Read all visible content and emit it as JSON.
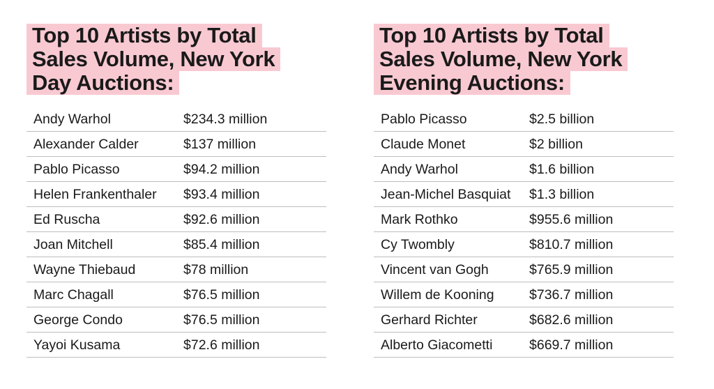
{
  "day_auctions": {
    "title_lines": [
      "Top 10 Artists by Total",
      "Sales Volume, New York",
      "Day Auctions:"
    ],
    "rows": [
      {
        "artist": "Andy Warhol",
        "sales": "$234.3 million"
      },
      {
        "artist": "Alexander Calder",
        "sales": "$137 million"
      },
      {
        "artist": "Pablo Picasso",
        "sales": "$94.2 million"
      },
      {
        "artist": "Helen Frankenthaler",
        "sales": "$93.4 million"
      },
      {
        "artist": "Ed Ruscha",
        "sales": "$92.6 million"
      },
      {
        "artist": "Joan Mitchell",
        "sales": "$85.4 million"
      },
      {
        "artist": "Wayne Thiebaud",
        "sales": "$78 million"
      },
      {
        "artist": "Marc Chagall",
        "sales": "$76.5 million"
      },
      {
        "artist": "George Condo",
        "sales": "$76.5 million"
      },
      {
        "artist": "Yayoi Kusama",
        "sales": "$72.6 million"
      }
    ]
  },
  "evening_auctions": {
    "title_lines": [
      "Top 10 Artists by Total",
      "Sales Volume, New York",
      "Evening Auctions:"
    ],
    "rows": [
      {
        "artist": "Pablo Picasso",
        "sales": "$2.5 billion"
      },
      {
        "artist": "Claude Monet",
        "sales": "$2 billion"
      },
      {
        "artist": "Andy Warhol",
        "sales": "$1.6 billion"
      },
      {
        "artist": "Jean-Michel Basquiat",
        "sales": "$1.3 billion"
      },
      {
        "artist": "Mark Rothko",
        "sales": "$955.6 million"
      },
      {
        "artist": "Cy Twombly",
        "sales": "$810.7 million"
      },
      {
        "artist": "Vincent van Gogh",
        "sales": "$765.9 million"
      },
      {
        "artist": "Willem de Kooning",
        "sales": "$736.7 million"
      },
      {
        "artist": "Gerhard Richter",
        "sales": "$682.6 million"
      },
      {
        "artist": "Alberto Giacometti",
        "sales": "$669.7 million"
      }
    ]
  },
  "colors": {
    "title_highlight": "#f9c9d2",
    "text": "#1a1a1a",
    "row_divider": "#bdbdbd"
  }
}
